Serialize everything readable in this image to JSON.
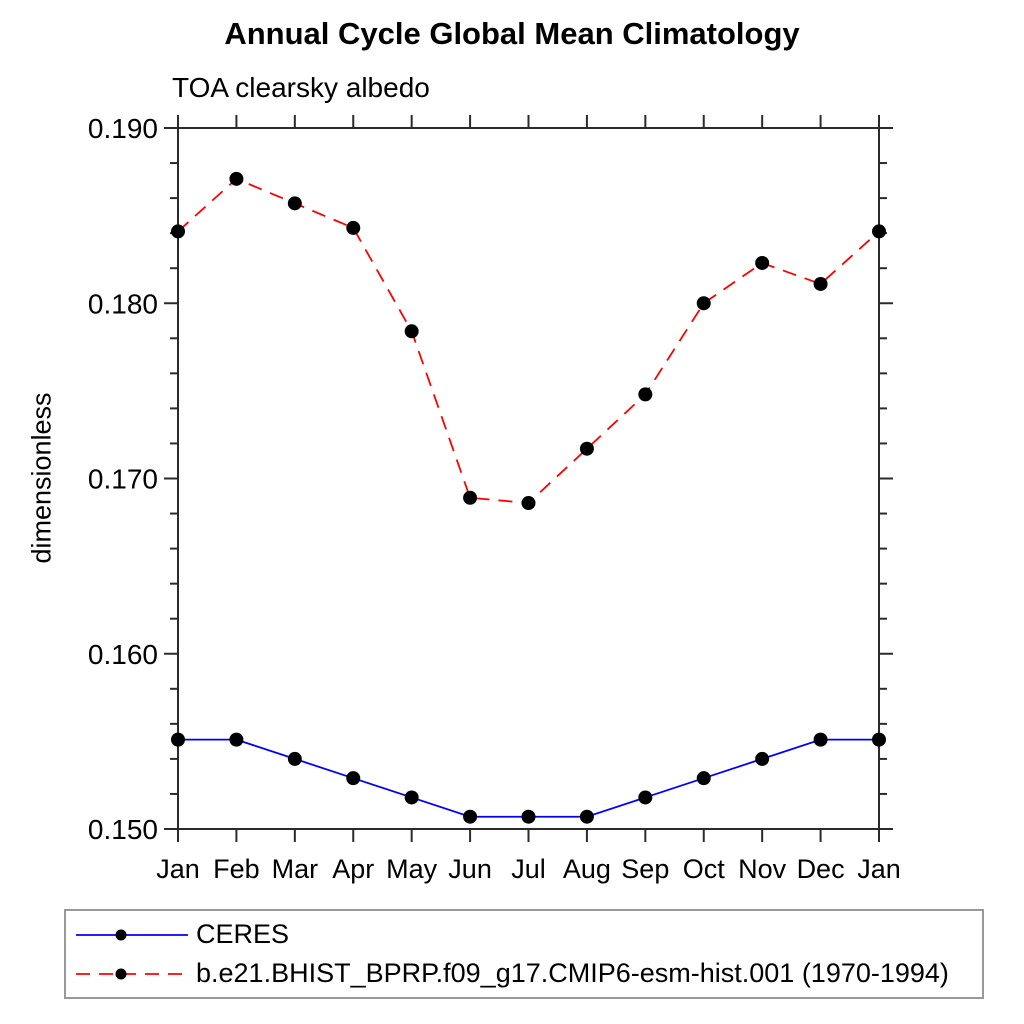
{
  "header": {
    "title": "Annual Cycle Global Mean Climatology",
    "subtitle": "TOA clearsky albedo"
  },
  "chart_data": {
    "type": "line",
    "title": "Annual Cycle Global Mean Climatology",
    "subtitle": "TOA clearsky albedo",
    "xlabel": "",
    "ylabel": "dimensionless",
    "categories": [
      "Jan",
      "Feb",
      "Mar",
      "Apr",
      "May",
      "Jun",
      "Jul",
      "Aug",
      "Sep",
      "Oct",
      "Nov",
      "Dec",
      "Jan"
    ],
    "ylim": [
      0.15,
      0.19
    ],
    "ytick_major": [
      0.15,
      0.16,
      0.17,
      0.18,
      0.19
    ],
    "ytick_labels": [
      "0.150",
      "0.160",
      "0.170",
      "0.180",
      "0.190"
    ],
    "ytick_minor_step": 0.002,
    "grid": false,
    "legend_position": "bottom-left-box",
    "series": [
      {
        "name": "CERES",
        "color": "#0000ff",
        "line_style": "solid",
        "marker": "circle",
        "marker_color": "#000000",
        "values": [
          0.1551,
          0.1551,
          0.154,
          0.1529,
          0.1518,
          0.1507,
          0.1507,
          0.1507,
          0.1518,
          0.1529,
          0.154,
          0.1551,
          0.1551
        ]
      },
      {
        "name": "b.e21.BHIST_BPRP.f09_g17.CMIP6-esm-hist.001 (1970-1994)",
        "color": "#ff0000",
        "line_style": "dashed",
        "marker": "circle",
        "marker_color": "#000000",
        "values": [
          0.1841,
          0.1871,
          0.1857,
          0.1843,
          0.1784,
          0.1689,
          0.1686,
          0.1717,
          0.1748,
          0.18,
          0.1823,
          0.1811,
          0.1841
        ]
      }
    ]
  },
  "colors": {
    "axis": "#2b2b2b",
    "text": "#000000",
    "legend_border": "#999999",
    "series_ceres": "#0000ff",
    "series_model": "#ff0000",
    "marker": "#000000",
    "background": "#ffffff"
  }
}
